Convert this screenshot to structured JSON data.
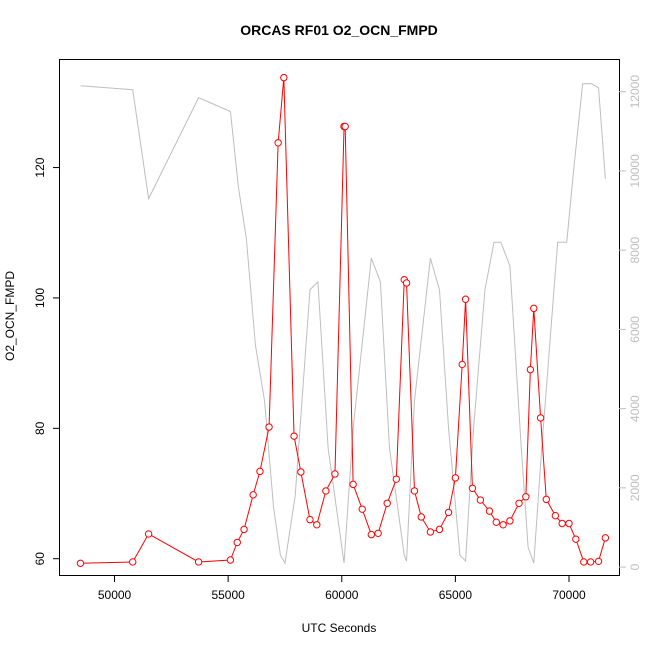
{
  "chart_data": {
    "type": "line",
    "title": "ORCAS RF01 O2_OCN_FMPD",
    "xlabel": "UTC Seconds",
    "ylabel": "O2_OCN_FMPD",
    "ylabel_right": "",
    "xlim": [
      47600,
      72200
    ],
    "ylim": [
      57.5,
      136.5
    ],
    "ylim_right": [
      -200,
      12800
    ],
    "x_ticks": [
      50000,
      55000,
      60000,
      65000,
      70000
    ],
    "y_ticks": [
      60,
      80,
      100,
      120
    ],
    "y_ticks_right": [
      0,
      2000,
      4000,
      6000,
      8000,
      10000,
      12000
    ],
    "grid": false,
    "colors": {
      "primary": "#ff0000",
      "secondary": "#bebebe",
      "axis": "#000000",
      "right_axis": "#bebebe"
    },
    "series": [
      {
        "axis": "left",
        "marker": "open-circle",
        "x": [
          48500,
          50800,
          51500,
          53700,
          55100,
          55400,
          55700,
          56100,
          56400,
          56800,
          57200,
          57450,
          57900,
          58200,
          58600,
          58900,
          59300,
          59700,
          60100,
          60150,
          60500,
          60900,
          61300,
          61600,
          62000,
          62400,
          62750,
          62850,
          63200,
          63500,
          63900,
          64300,
          64700,
          65000,
          65300,
          65450,
          65750,
          66100,
          66500,
          66800,
          67100,
          67400,
          67800,
          68100,
          68300,
          68450,
          68750,
          69000,
          69400,
          69700,
          70000,
          70300,
          70650,
          70950,
          71300,
          71600
        ],
        "values": [
          59.3,
          59.5,
          63.8,
          59.5,
          59.8,
          62.5,
          64.5,
          69.8,
          73.4,
          80.2,
          123.8,
          133.8,
          78.8,
          73.3,
          66.0,
          65.2,
          70.4,
          73.0,
          126.3,
          126.3,
          71.4,
          67.6,
          63.7,
          63.9,
          68.5,
          72.2,
          102.8,
          102.3,
          70.4,
          66.4,
          64.1,
          64.5,
          67.1,
          72.4,
          89.8,
          99.8,
          70.8,
          69.0,
          67.3,
          65.6,
          65.2,
          65.8,
          68.5,
          69.5,
          89.0,
          98.4,
          81.6,
          69.1,
          66.6,
          65.4,
          65.4,
          63.0,
          59.5,
          59.5,
          59.6,
          63.2
        ]
      },
      {
        "axis": "right",
        "x": [
          48500,
          50800,
          51500,
          53700,
          55100,
          55450,
          55800,
          56200,
          56600,
          57000,
          57300,
          57500,
          57950,
          58600,
          58950,
          59400,
          60100,
          60500,
          61300,
          61700,
          62100,
          62750,
          62850,
          63200,
          63900,
          64300,
          64700,
          65200,
          65450,
          65800,
          66300,
          66700,
          67000,
          67400,
          67900,
          68200,
          68450,
          68800,
          69500,
          69900,
          70200,
          70600,
          71000,
          71300,
          71600
        ],
        "values": [
          12150,
          12050,
          9300,
          11850,
          11500,
          9600,
          8300,
          5600,
          4200,
          1500,
          300,
          100,
          1800,
          7000,
          7200,
          3000,
          100,
          3500,
          7800,
          7200,
          3000,
          300,
          150,
          4200,
          7800,
          7000,
          3500,
          300,
          150,
          3500,
          7000,
          8200,
          8200,
          7600,
          3000,
          500,
          100,
          3000,
          8200,
          8200,
          10000,
          12200,
          12200,
          12100,
          9800
        ]
      }
    ]
  }
}
